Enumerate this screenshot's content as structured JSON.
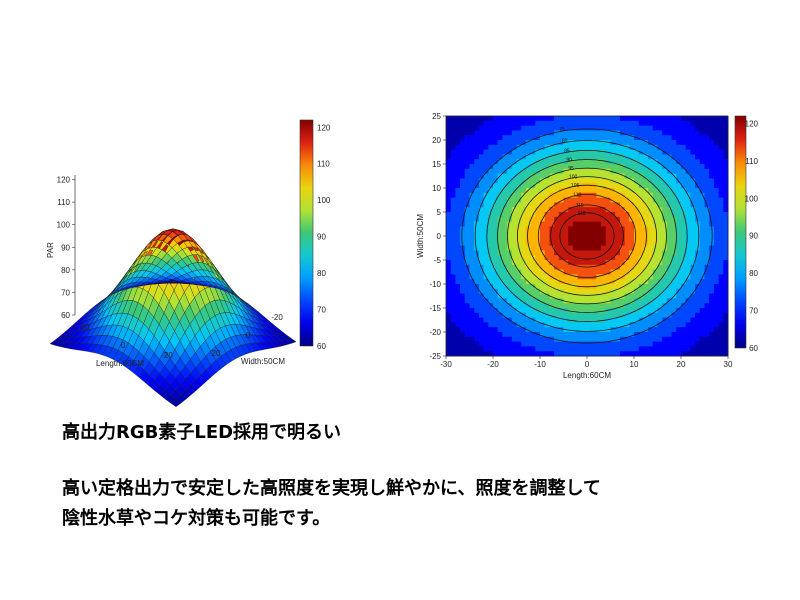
{
  "surface": {
    "type": "surface",
    "zlabel": "PAR",
    "xlabel": "Length:60CM",
    "ylabel": "Width:50CM",
    "x_ticks": [
      "20",
      "0",
      "-20"
    ],
    "y_ticks": [
      "20",
      "0",
      "-20"
    ],
    "z_ticks": [
      "60",
      "70",
      "80",
      "90",
      "100",
      "110",
      "120"
    ],
    "zlim": [
      60,
      122
    ],
    "colorbar_ticks": [
      "120",
      "110",
      "100",
      "90",
      "80",
      "70",
      "60"
    ]
  },
  "contour": {
    "type": "contour",
    "xlabel": "Length:60CM",
    "ylabel": "Width:50CM",
    "x_ticks": [
      "-30",
      "-20",
      "-10",
      "0",
      "10",
      "20",
      "30"
    ],
    "y_ticks": [
      "25",
      "20",
      "15",
      "10",
      "5",
      "0",
      "-5",
      "-10",
      "-15",
      "-20",
      "-25"
    ],
    "xlim": [
      -30,
      30
    ],
    "ylim": [
      -25,
      25
    ],
    "contour_labels": [
      "75",
      "80",
      "85",
      "90",
      "95",
      "100",
      "105",
      "110",
      "115",
      "118"
    ],
    "colorbar_ticks": [
      "120",
      "110",
      "100",
      "90",
      "80",
      "70",
      "60"
    ],
    "zlim": [
      60,
      122
    ]
  },
  "text": {
    "headline": "高出力RGB素子LED採用で明るい",
    "desc_line1": "高い定格出力で安定した高照度を実現し鮮やかに、照度を調整して",
    "desc_line2": "陰性水草やコケ対策も可能です。"
  }
}
